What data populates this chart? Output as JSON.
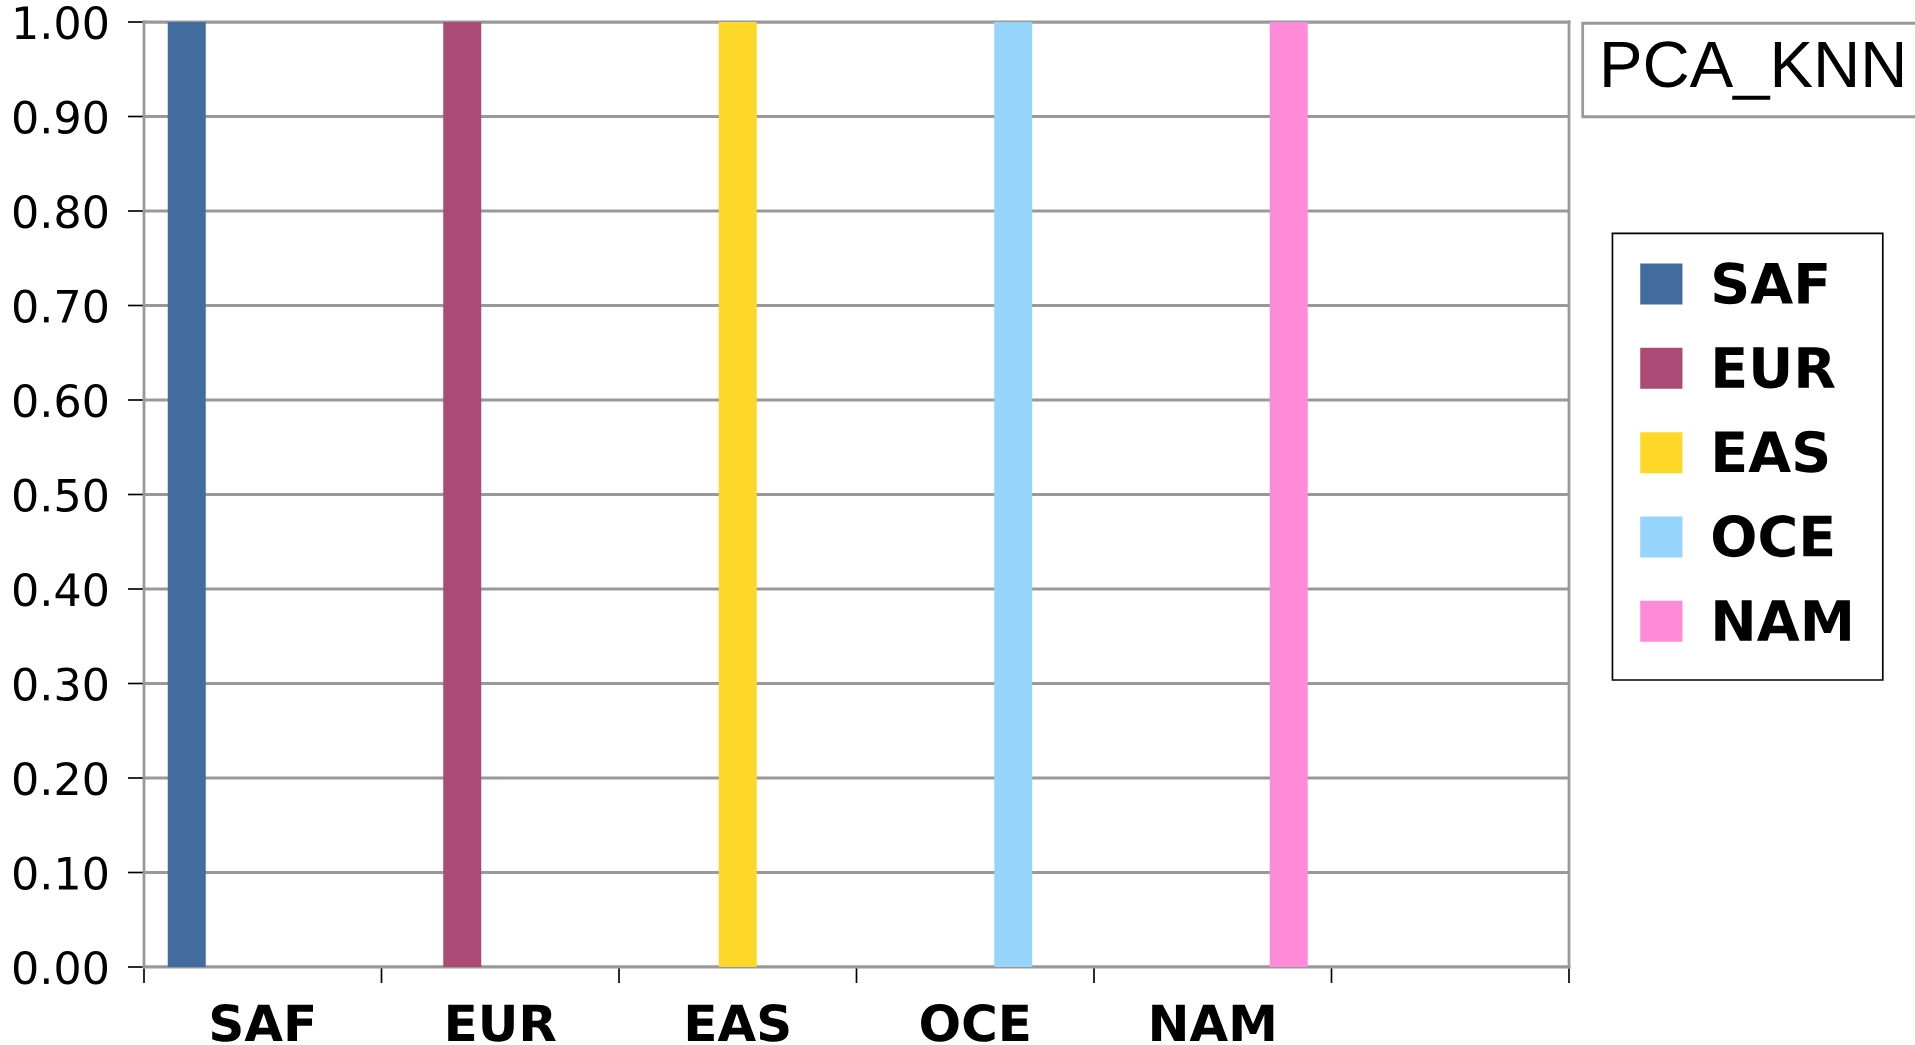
{
  "chart_data": {
    "type": "bar",
    "title": "PCA_KNN",
    "categories": [
      "SAF",
      "EUR",
      "EAS",
      "OCE",
      "NAM",
      null
    ],
    "series": [
      {
        "name": "SAF",
        "color": "#436c9e",
        "values": [
          1,
          0,
          0,
          0,
          0,
          null
        ]
      },
      {
        "name": "EUR",
        "color": "#aa4a75",
        "values": [
          0,
          1,
          0,
          0,
          0,
          null
        ]
      },
      {
        "name": "EAS",
        "color": "#fdd828",
        "values": [
          0,
          0,
          1,
          0,
          0,
          null
        ]
      },
      {
        "name": "OCE",
        "color": "#96d4fc",
        "values": [
          0,
          0,
          0,
          1,
          0,
          null
        ]
      },
      {
        "name": "NAM",
        "color": "#ff8ad8",
        "values": [
          0,
          0,
          0,
          0,
          1,
          null
        ]
      }
    ],
    "ylim": [
      0,
      1
    ],
    "yticks": [
      {
        "value": 0,
        "label": "0.00"
      },
      {
        "value": 0.1,
        "label": "0.10"
      },
      {
        "value": 0.2,
        "label": "0.20"
      },
      {
        "value": 0.3,
        "label": "0.30"
      },
      {
        "value": 0.4,
        "label": "0.40"
      },
      {
        "value": 0.5,
        "label": "0.50"
      },
      {
        "value": 0.6,
        "label": "0.60"
      },
      {
        "value": 0.7,
        "label": "0.70"
      },
      {
        "value": 0.8,
        "label": "0.80"
      },
      {
        "value": 0.9,
        "label": "0.90"
      },
      {
        "value": 1,
        "label": "1.00"
      }
    ],
    "grid": "y",
    "legend": "right"
  }
}
